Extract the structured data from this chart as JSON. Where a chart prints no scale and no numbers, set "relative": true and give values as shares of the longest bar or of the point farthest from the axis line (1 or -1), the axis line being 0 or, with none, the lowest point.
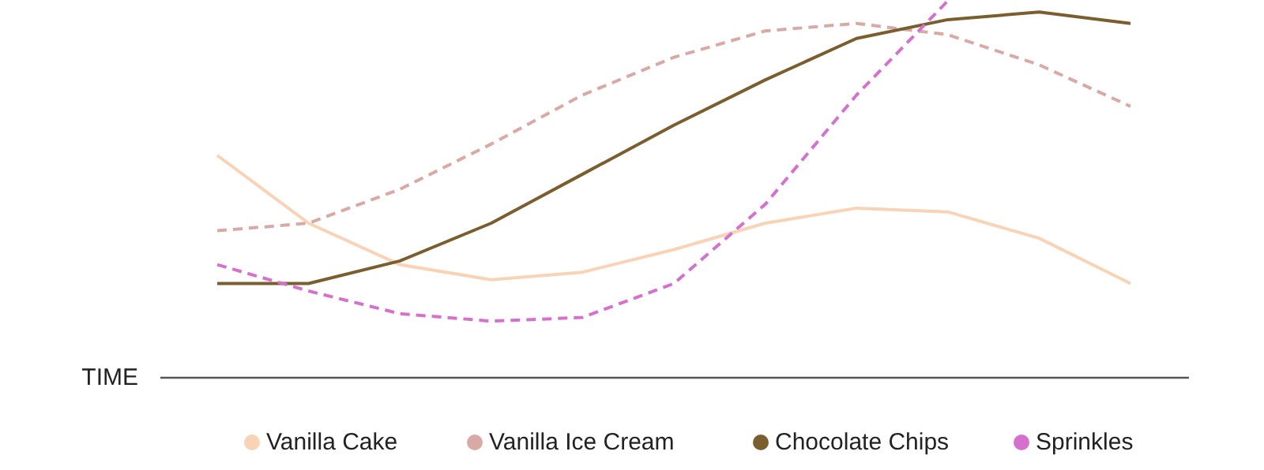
{
  "chart_data": {
    "type": "line",
    "relative": true,
    "xlabel": "TIME",
    "legend": "bottom",
    "categories": [
      null,
      null,
      null,
      null,
      null,
      null,
      null,
      null,
      null,
      null,
      null
    ],
    "series": [
      {
        "name": "Vanilla Cake",
        "color": "#f9d3b5",
        "line_style": "solid",
        "values": [
          0.59,
          0.41,
          0.3,
          0.26,
          0.28,
          0.34,
          0.41,
          0.45,
          0.44,
          0.37,
          0.25
        ]
      },
      {
        "name": "Vanilla Ice Cream",
        "color": "#d8a9a5",
        "line_style": "dashed",
        "values": [
          0.39,
          0.41,
          0.5,
          0.62,
          0.75,
          0.85,
          0.92,
          0.94,
          0.91,
          0.83,
          0.72
        ]
      },
      {
        "name": "Chocolate Chips",
        "color": "#7b5e2e",
        "line_style": "solid",
        "values": [
          0.25,
          0.25,
          0.31,
          0.41,
          0.54,
          0.67,
          0.79,
          0.9,
          0.95,
          0.97,
          0.94
        ]
      },
      {
        "name": "Sprinkles",
        "color": "#d670cf",
        "line_style": "dashed",
        "values": [
          0.3,
          0.23,
          0.17,
          0.15,
          0.16,
          0.25,
          0.46,
          0.75,
          1.0,
          null,
          null
        ]
      }
    ]
  }
}
